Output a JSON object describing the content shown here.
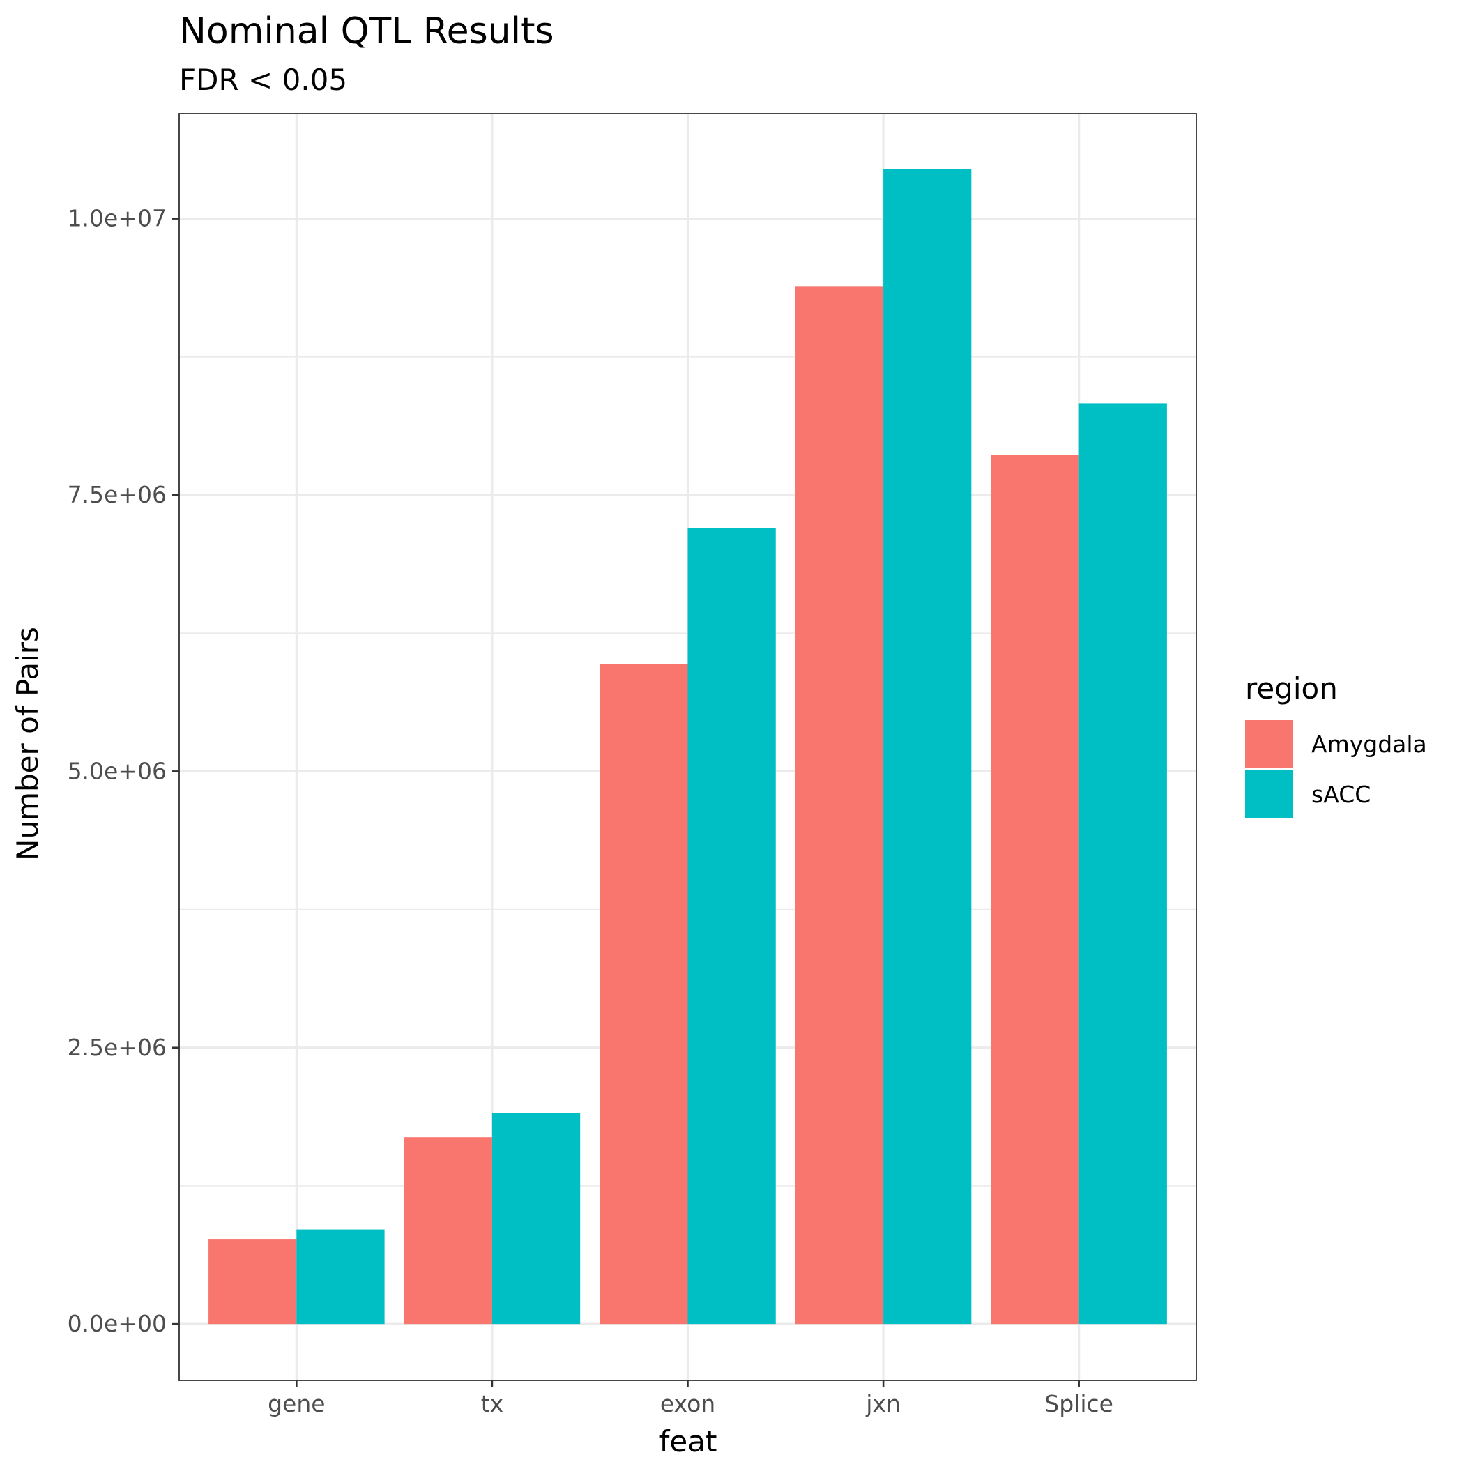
{
  "chart_data": {
    "type": "bar",
    "title": "Nominal QTL Results",
    "subtitle": "FDR < 0.05",
    "xlabel": "feat",
    "ylabel": "Number of Pairs",
    "categories": [
      "gene",
      "tx",
      "exon",
      "jxn",
      "Splice"
    ],
    "series": [
      {
        "name": "Amygdala",
        "color": "#F8766D",
        "values": [
          770000,
          1690000,
          5970000,
          9390000,
          7860000
        ]
      },
      {
        "name": "sACC",
        "color": "#00BFC4",
        "values": [
          855000,
          1910000,
          7200000,
          10450000,
          8330000
        ]
      }
    ],
    "ylim": [
      -510000,
      10950000
    ],
    "y_ticks": [
      0,
      2500000,
      5000000,
      7500000,
      10000000
    ],
    "y_tick_labels": [
      "0.0e+00",
      "2.5e+06",
      "5.0e+06",
      "7.5e+06",
      "1.0e+07"
    ],
    "y_minor_ticks": [
      1250000,
      3750000,
      6250000,
      8750000
    ],
    "grid": true,
    "legend": {
      "title": "region",
      "position": "right",
      "entries": [
        "Amygdala",
        "sACC"
      ]
    }
  }
}
